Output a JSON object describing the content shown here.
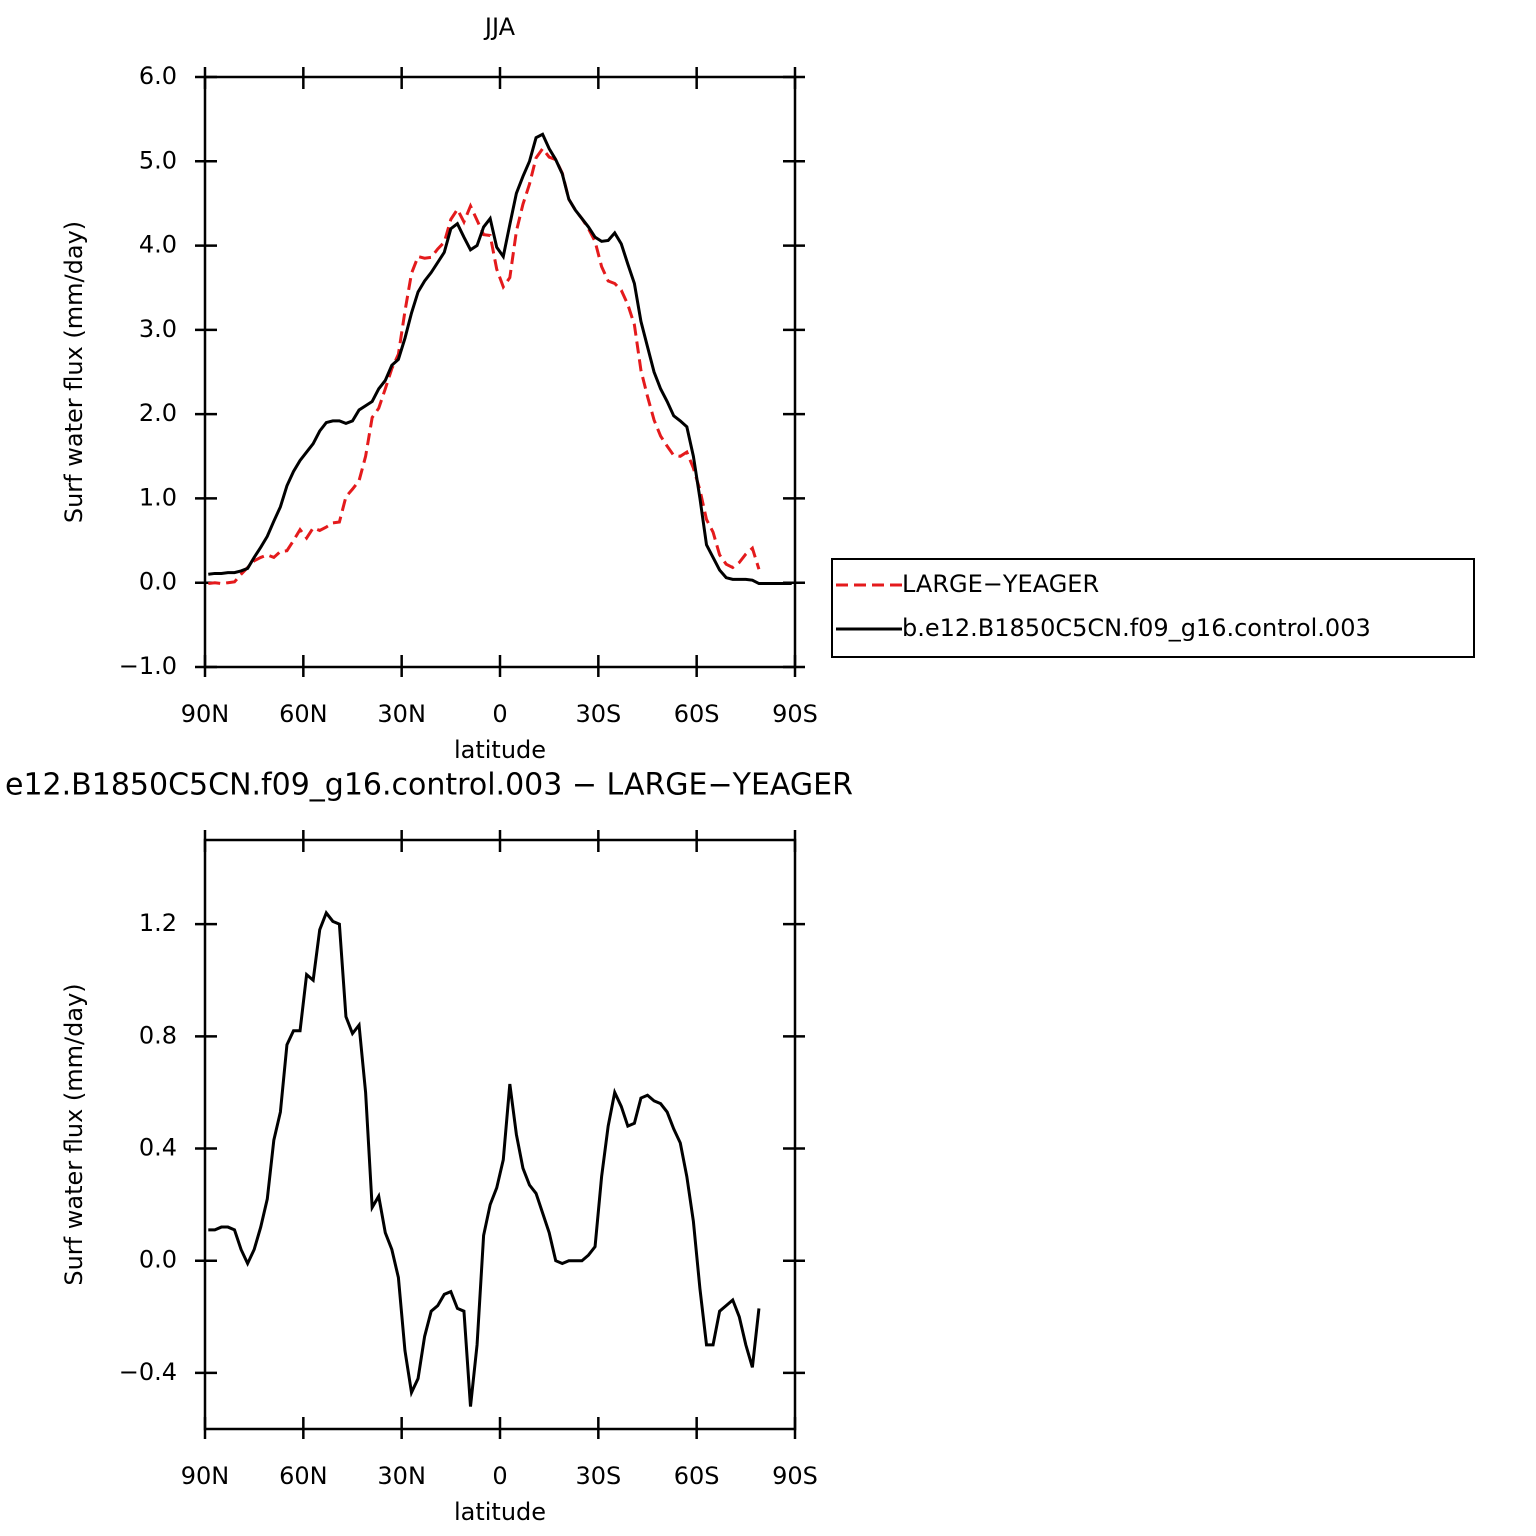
{
  "chart_data": [
    {
      "type": "line",
      "title": "JJA",
      "xlabel": "latitude",
      "ylabel": "Surf water flux (mm/day)",
      "x": [
        89,
        87,
        85,
        83,
        81,
        79,
        77,
        75,
        73,
        71,
        69,
        67,
        65,
        63,
        61,
        59,
        57,
        55,
        53,
        51,
        49,
        47,
        45,
        43,
        41,
        39,
        37,
        35,
        33,
        31,
        29,
        27,
        25,
        23,
        21,
        19,
        17,
        15,
        13,
        11,
        9,
        7,
        5,
        3,
        1,
        -1,
        -3,
        -5,
        -7,
        -9,
        -11,
        -13,
        -15,
        -17,
        -19,
        -21,
        -23,
        -25,
        -27,
        -29,
        -31,
        -33,
        -35,
        -37,
        -39,
        -41,
        -43,
        -45,
        -47,
        -49,
        -51,
        -53,
        -55,
        -57,
        -59,
        -61,
        -63,
        -65,
        -67,
        -69,
        -71,
        -73,
        -75,
        -77,
        -79,
        -81,
        -83,
        -85,
        -87,
        -89
      ],
      "series": [
        {
          "name": "LARGE−YEAGER",
          "color": "#e41a1c",
          "linestyle": "dashed",
          "values": [
            -0.01,
            0.0,
            -0.01,
            0.0,
            0.01,
            0.1,
            0.18,
            0.26,
            0.3,
            0.33,
            0.3,
            0.37,
            0.38,
            0.5,
            0.63,
            0.53,
            0.65,
            0.62,
            0.66,
            0.71,
            0.72,
            1.02,
            1.11,
            1.21,
            1.5,
            1.96,
            2.07,
            2.3,
            2.54,
            2.71,
            3.22,
            3.67,
            3.87,
            3.85,
            3.86,
            3.96,
            4.04,
            4.31,
            4.43,
            4.28,
            4.47,
            4.3,
            4.13,
            4.12,
            3.72,
            3.51,
            3.62,
            4.17,
            4.49,
            4.73,
            5.04,
            5.15,
            5.05,
            5.02,
            4.86,
            4.55,
            4.42,
            4.32,
            4.2,
            4.05,
            3.75,
            3.58,
            3.55,
            3.47,
            3.3,
            3.06,
            2.52,
            2.21,
            1.93,
            1.74,
            1.62,
            1.51,
            1.5,
            1.55,
            1.36,
            1.1,
            0.75,
            0.6,
            0.33,
            0.22,
            0.18,
            0.24,
            0.34,
            0.41,
            0.16,
            null,
            null,
            null,
            null,
            null
          ]
        },
        {
          "name": "b.e12.B1850C5CN.f09_g16.control.003",
          "color": "#000000",
          "linestyle": "solid",
          "values": [
            0.1,
            0.11,
            0.11,
            0.12,
            0.12,
            0.14,
            0.17,
            0.3,
            0.42,
            0.55,
            0.73,
            0.9,
            1.15,
            1.32,
            1.45,
            1.55,
            1.65,
            1.8,
            1.9,
            1.92,
            1.92,
            1.89,
            1.92,
            2.05,
            2.1,
            2.15,
            2.3,
            2.4,
            2.58,
            2.65,
            2.9,
            3.2,
            3.45,
            3.58,
            3.68,
            3.8,
            3.92,
            4.2,
            4.26,
            4.1,
            3.95,
            4.0,
            4.22,
            4.32,
            3.98,
            3.87,
            4.25,
            4.62,
            4.82,
            5.0,
            5.28,
            5.32,
            5.15,
            5.02,
            4.85,
            4.55,
            4.42,
            4.32,
            4.22,
            4.1,
            4.05,
            4.06,
            4.15,
            4.02,
            3.78,
            3.55,
            3.1,
            2.8,
            2.5,
            2.3,
            2.15,
            1.98,
            1.92,
            1.85,
            1.5,
            1.0,
            0.45,
            0.3,
            0.15,
            0.06,
            0.04,
            0.04,
            0.04,
            0.03,
            -0.01,
            -0.01,
            -0.01,
            -0.01,
            -0.01,
            -0.01
          ]
        }
      ],
      "xlim": [
        90,
        -90
      ],
      "xticks": [
        {
          "value": 90,
          "label": "90N"
        },
        {
          "value": 60,
          "label": "60N"
        },
        {
          "value": 30,
          "label": "30N"
        },
        0,
        {
          "value": -30,
          "label": "30S"
        },
        {
          "value": -60,
          "label": "60S"
        },
        {
          "value": -90,
          "label": "90S"
        }
      ],
      "ylim": [
        -1,
        6
      ],
      "yticks": [
        {
          "value": -1,
          "label": "−1.0"
        },
        {
          "value": 0,
          "label": "0.0"
        },
        {
          "value": 1,
          "label": "1.0"
        },
        {
          "value": 2,
          "label": "2.0"
        },
        {
          "value": 3,
          "label": "3.0"
        },
        {
          "value": 4,
          "label": "4.0"
        },
        {
          "value": 5,
          "label": "5.0"
        },
        {
          "value": 6,
          "label": "6.0"
        }
      ],
      "legend": "right"
    },
    {
      "type": "line",
      "title": "e12.B1850C5CN.f09_g16.control.003 − LARGE−YEAGER",
      "xlabel": "latitude",
      "ylabel": "Surf water flux (mm/day)",
      "x": [
        89,
        87,
        85,
        83,
        81,
        79,
        77,
        75,
        73,
        71,
        69,
        67,
        65,
        63,
        61,
        59,
        57,
        55,
        53,
        51,
        49,
        47,
        45,
        43,
        41,
        39,
        37,
        35,
        33,
        31,
        29,
        27,
        25,
        23,
        21,
        19,
        17,
        15,
        13,
        11,
        9,
        7,
        5,
        3,
        1,
        -1,
        -3,
        -5,
        -7,
        -9,
        -11,
        -13,
        -15,
        -17,
        -19,
        -21,
        -23,
        -25,
        -27,
        -29,
        -31,
        -33,
        -35,
        -37,
        -39,
        -41,
        -43,
        -45,
        -47,
        -49,
        -51,
        -53,
        -55,
        -57,
        -59,
        -61,
        -63,
        -65,
        -67,
        -69,
        -71,
        -73,
        -75,
        -77,
        -79
      ],
      "series": [
        {
          "color": "#000000",
          "linestyle": "solid",
          "values": [
            0.11,
            0.11,
            0.12,
            0.12,
            0.11,
            0.04,
            -0.01,
            0.04,
            0.12,
            0.22,
            0.43,
            0.53,
            0.77,
            0.82,
            0.82,
            1.02,
            1.0,
            1.18,
            1.24,
            1.21,
            1.2,
            0.87,
            0.81,
            0.84,
            0.6,
            0.19,
            0.23,
            0.1,
            0.04,
            -0.06,
            -0.32,
            -0.47,
            -0.42,
            -0.27,
            -0.18,
            -0.16,
            -0.12,
            -0.11,
            -0.17,
            -0.18,
            -0.52,
            -0.3,
            0.09,
            0.2,
            0.26,
            0.36,
            0.63,
            0.45,
            0.33,
            0.27,
            0.24,
            0.17,
            0.1,
            0.0,
            -0.01,
            0.0,
            0.0,
            0.0,
            0.02,
            0.05,
            0.3,
            0.48,
            0.6,
            0.55,
            0.48,
            0.49,
            0.58,
            0.59,
            0.57,
            0.56,
            0.53,
            0.47,
            0.42,
            0.3,
            0.14,
            -0.1,
            -0.3,
            -0.3,
            -0.18,
            -0.16,
            -0.14,
            -0.2,
            -0.3,
            -0.38,
            -0.17
          ]
        }
      ],
      "xlim": [
        90,
        -90
      ],
      "xticks": [
        {
          "value": 90,
          "label": "90N"
        },
        {
          "value": 60,
          "label": "60N"
        },
        {
          "value": 30,
          "label": "30N"
        },
        0,
        {
          "value": -30,
          "label": "30S"
        },
        {
          "value": -60,
          "label": "60S"
        },
        {
          "value": -90,
          "label": "90S"
        }
      ],
      "ylim": [
        -0.6,
        1.5
      ],
      "yticks": [
        {
          "value": -0.4,
          "label": "−0.4"
        },
        {
          "value": 0,
          "label": "0.0"
        },
        {
          "value": 0.4,
          "label": "0.4"
        },
        {
          "value": 0.8,
          "label": "0.8"
        },
        {
          "value": 1.2,
          "label": "1.2"
        }
      ]
    }
  ]
}
